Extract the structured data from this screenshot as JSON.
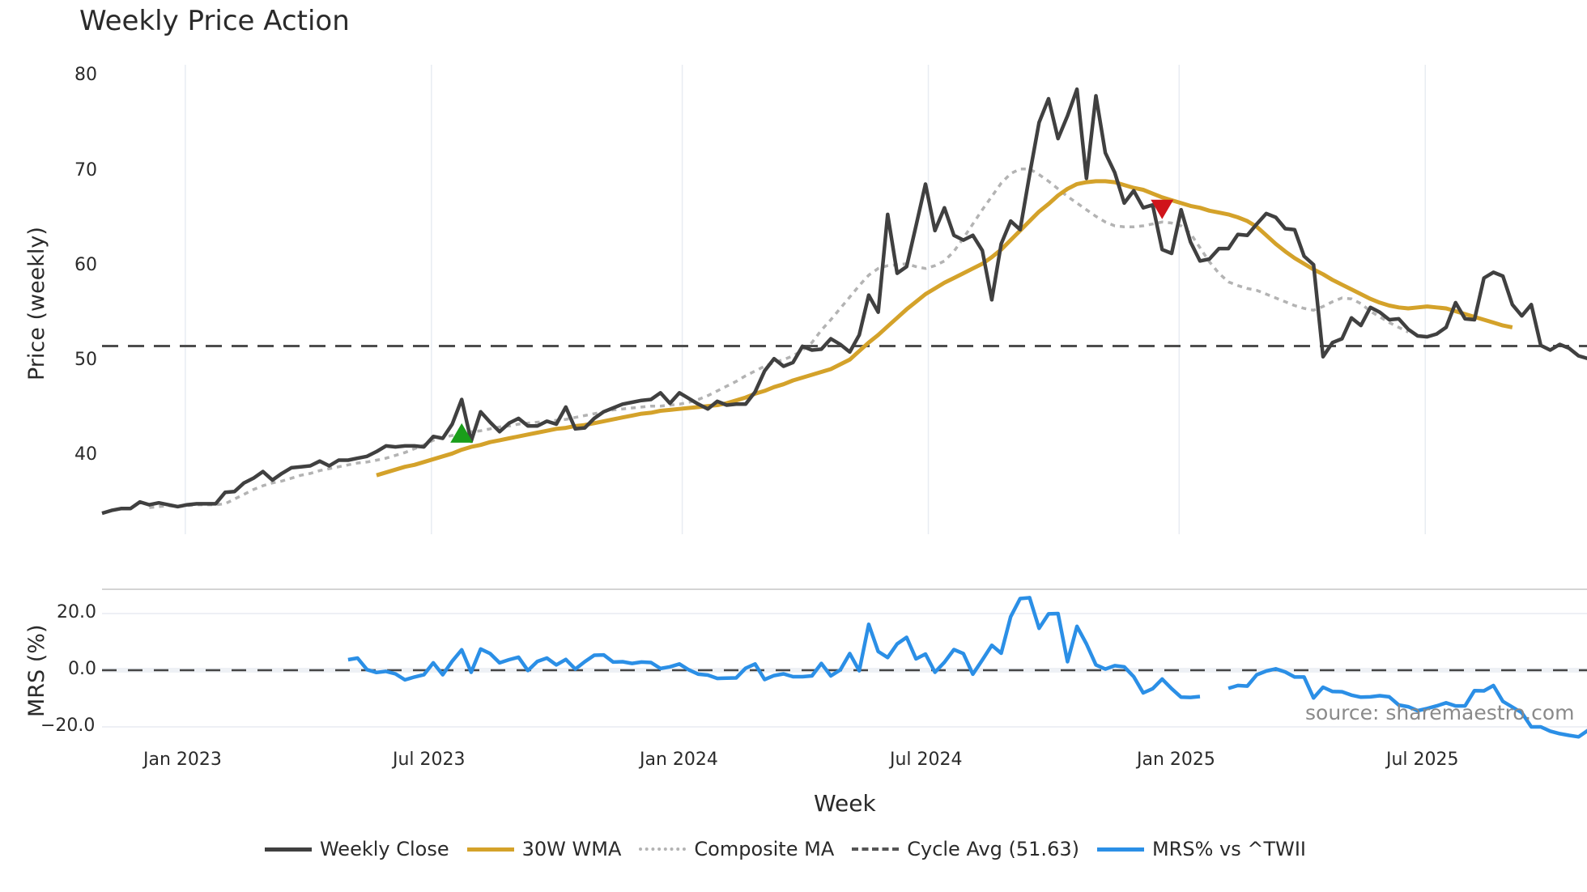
{
  "title": "Weekly Price Action",
  "watermark": "source: sharemaestro.com",
  "axes": {
    "price_ylabel": "Price (weekly)",
    "mrs_ylabel": "MRS (%)",
    "xlabel": "Week",
    "price_ticks": [
      "80",
      "70",
      "60",
      "50",
      "40"
    ],
    "mrs_ticks": [
      "20.0",
      "0.0",
      "−20.0"
    ],
    "x_ticks": [
      "Jan 2023",
      "Jul 2023",
      "Jan 2024",
      "Jul 2024",
      "Jan 2025",
      "Jul 2025"
    ]
  },
  "legend": [
    {
      "label": "Weekly Close",
      "color": "#404040",
      "style": "solid"
    },
    {
      "label": "30W WMA",
      "color": "#d4a22a",
      "style": "solid"
    },
    {
      "label": "Composite MA",
      "color": "#b3b3b3",
      "style": "dotted"
    },
    {
      "label": "Cycle Avg (51.63)",
      "color": "#555555",
      "style": "dashed"
    },
    {
      "label": "MRS% vs ^TWII",
      "color": "#2b8fe6",
      "style": "solid"
    }
  ],
  "colors": {
    "close": "#404040",
    "wma": "#d4a22a",
    "composite": "#b3b3b3",
    "cycle": "#4d4d4d",
    "mrs": "#2b8fe6",
    "buy_marker": "#1a9e1a",
    "sell_marker": "#d0141b",
    "grid": "#e8ecf2"
  },
  "chart_data": [
    {
      "type": "line",
      "title": "Weekly Price Action",
      "xlabel": "Week",
      "ylabel": "Price (weekly)",
      "ylim": [
        31.5,
        81.5
      ],
      "x_tick_labels": [
        "Jan 2023",
        "Jul 2023",
        "Jan 2024",
        "Jul 2024",
        "Jan 2025",
        "Jul 2025"
      ],
      "x_tick_index": [
        8.8,
        34.8,
        61.3,
        87.3,
        113.8,
        139.8
      ],
      "cycle_avg": 51.63,
      "series": [
        {
          "name": "Weekly Close",
          "start": 0,
          "values": [
            34.0,
            34.3,
            34.5,
            34.5,
            35.2,
            34.9,
            35.1,
            34.9,
            34.7,
            34.9,
            35.0,
            35.0,
            35.0,
            36.2,
            36.3,
            37.2,
            37.7,
            38.4,
            37.5,
            38.2,
            38.8,
            38.9,
            39.0,
            39.5,
            39.0,
            39.6,
            39.6,
            39.8,
            40.0,
            40.5,
            41.1,
            41.0,
            41.1,
            41.1,
            41.0,
            42.1,
            41.9,
            43.4,
            46.0,
            41.6,
            44.7,
            43.6,
            42.6,
            43.5,
            44.0,
            43.2,
            43.2,
            43.7,
            43.4,
            45.2,
            42.9,
            43.0,
            44.0,
            44.7,
            45.1,
            45.5,
            45.7,
            45.9,
            46.0,
            46.7,
            45.6,
            46.7,
            46.1,
            45.5,
            45.0,
            45.8,
            45.4,
            45.5,
            45.5,
            46.8,
            49.0,
            50.3,
            49.5,
            49.9,
            51.6,
            51.2,
            51.3,
            52.4,
            51.8,
            51.0,
            52.8,
            57.0,
            55.2,
            65.5,
            59.3,
            60.0,
            64.3,
            68.7,
            63.8,
            66.2,
            63.3,
            62.8,
            63.3,
            61.7,
            56.5,
            62.4,
            64.8,
            63.9,
            69.7,
            75.2,
            77.7,
            73.5,
            75.9,
            78.7,
            69.3,
            78.0,
            72.0,
            69.9,
            66.7,
            68.0,
            66.2,
            66.5,
            61.8,
            61.4,
            66.0,
            62.6,
            60.6,
            60.8,
            61.9,
            61.9,
            63.4,
            63.3,
            64.5,
            65.6,
            65.2,
            64.0,
            63.9,
            61.1,
            60.2,
            50.5,
            52.0,
            52.4,
            54.6,
            53.8,
            55.7,
            55.2,
            54.4,
            54.5,
            53.4,
            52.7,
            52.6,
            52.9,
            53.6,
            56.2,
            54.5,
            54.4,
            58.8,
            59.4,
            59.0,
            56.0,
            54.8,
            56.0,
            51.7,
            51.2,
            51.8,
            51.4,
            50.6,
            50.3,
            51.5
          ]
        },
        {
          "name": "30W WMA",
          "start": 29,
          "values": [
            38.0,
            38.3,
            38.6,
            38.9,
            39.1,
            39.4,
            39.7,
            40.0,
            40.3,
            40.7,
            41.0,
            41.2,
            41.5,
            41.7,
            41.9,
            42.1,
            42.3,
            42.5,
            42.7,
            42.9,
            43.0,
            43.2,
            43.3,
            43.5,
            43.7,
            43.9,
            44.1,
            44.3,
            44.5,
            44.6,
            44.8,
            44.9,
            45.0,
            45.1,
            45.2,
            45.3,
            45.4,
            45.6,
            45.9,
            46.2,
            46.6,
            46.9,
            47.3,
            47.6,
            48.0,
            48.3,
            48.6,
            48.9,
            49.2,
            49.7,
            50.2,
            51.1,
            52.0,
            52.8,
            53.7,
            54.6,
            55.5,
            56.3,
            57.1,
            57.7,
            58.3,
            58.8,
            59.3,
            59.8,
            60.3,
            61.0,
            61.8,
            62.8,
            63.8,
            64.8,
            65.8,
            66.6,
            67.5,
            68.2,
            68.7,
            68.9,
            69.0,
            69.0,
            68.9,
            68.6,
            68.3,
            68.1,
            67.7,
            67.3,
            67.0,
            66.7,
            66.4,
            66.2,
            65.9,
            65.7,
            65.5,
            65.2,
            64.8,
            64.2,
            63.3,
            62.4,
            61.6,
            60.9,
            60.3,
            59.7,
            59.2,
            58.6,
            58.1,
            57.6,
            57.1,
            56.6,
            56.2,
            55.9,
            55.7,
            55.6,
            55.7,
            55.8,
            55.7,
            55.6,
            55.3,
            55.0,
            54.7,
            54.4,
            54.1,
            53.8,
            53.6
          ]
        },
        {
          "name": "Composite MA",
          "start": 5,
          "values": [
            34.6,
            34.7,
            34.8,
            34.7,
            34.8,
            34.9,
            34.9,
            34.9,
            35.0,
            35.5,
            36.0,
            36.5,
            36.9,
            37.2,
            37.4,
            37.7,
            38.0,
            38.2,
            38.5,
            38.7,
            38.9,
            39.1,
            39.3,
            39.4,
            39.6,
            39.8,
            40.1,
            40.4,
            40.8,
            41.2,
            41.7,
            42.0,
            42.2,
            42.4,
            42.6,
            42.7,
            42.9,
            43.1,
            43.2,
            43.4,
            43.5,
            43.6,
            43.7,
            43.8,
            43.9,
            44.1,
            44.3,
            44.5,
            44.7,
            44.9,
            45.0,
            45.1,
            45.2,
            45.3,
            45.3,
            45.4,
            45.5,
            45.7,
            46.0,
            46.4,
            46.9,
            47.4,
            47.9,
            48.5,
            49.0,
            49.5,
            49.9,
            50.2,
            50.6,
            51.2,
            52.0,
            53.3,
            54.4,
            55.6,
            56.8,
            58.0,
            59.1,
            59.8,
            60.1,
            60.2,
            60.3,
            60.0,
            59.8,
            60.1,
            60.6,
            61.6,
            63.0,
            64.5,
            66.0,
            67.4,
            68.8,
            69.8,
            70.3,
            70.3,
            69.7,
            69.0,
            68.2,
            67.4,
            66.7,
            66.0,
            65.3,
            64.7,
            64.3,
            64.2,
            64.2,
            64.3,
            64.5,
            64.7,
            64.6,
            64.3,
            63.5,
            62.0,
            60.5,
            59.3,
            58.4,
            58.0,
            57.7,
            57.5,
            57.1,
            56.7,
            56.3,
            55.9,
            55.6,
            55.4,
            55.8,
            56.3,
            56.7,
            56.6,
            56.1,
            55.3,
            54.7,
            54.1,
            53.6,
            53.1
          ]
        }
      ],
      "markers": [
        {
          "type": "buy",
          "shape": "triangle-up",
          "index": 38,
          "value": 42.3,
          "color": "#1a9e1a"
        },
        {
          "type": "sell",
          "shape": "triangle-down",
          "index": 112,
          "value": 66.2,
          "color": "#d0141b"
        }
      ]
    },
    {
      "type": "line",
      "title": "",
      "ylabel": "MRS (%)",
      "ylim": [
        -25,
        28
      ],
      "y_ticks": [
        20.0,
        0.0,
        -20.0
      ],
      "zero_line": 0.0,
      "series": [
        {
          "name": "MRS% vs ^TWII",
          "start": 26,
          "values": [
            3.7,
            4.3,
            0.2,
            -0.8,
            -0.4,
            -1.3,
            -3.4,
            -2.4,
            -1.6,
            2.6,
            -1.6,
            3.2,
            7.2,
            -0.7,
            7.5,
            5.9,
            2.6,
            3.7,
            4.6,
            -0.1,
            3.1,
            4.3,
            1.9,
            3.8,
            0.4,
            3.0,
            5.3,
            5.4,
            2.9,
            3.0,
            2.4,
            2.9,
            2.7,
            0.6,
            1.2,
            2.2,
            0.1,
            -1.4,
            -1.7,
            -2.9,
            -2.8,
            -2.7,
            0.7,
            2.2,
            -3.3,
            -1.9,
            -1.3,
            -2.3,
            -2.3,
            -2.0,
            2.4,
            -2.0,
            0.1,
            5.9,
            -0.2,
            16.2,
            6.6,
            4.5,
            9.3,
            11.6,
            4.0,
            5.7,
            -0.7,
            2.8,
            7.3,
            5.9,
            -1.4,
            3.6,
            8.8,
            6.0,
            18.9,
            25.3,
            25.6,
            14.8,
            19.9,
            20.0,
            3.0,
            15.5,
            9.3,
            1.9,
            0.4,
            1.6,
            1.2,
            -2.3,
            -8.0,
            -6.5,
            -3.1,
            -6.5,
            -9.5,
            -9.6,
            -9.3,
            null,
            null,
            -6.4,
            -5.4,
            -5.6,
            -1.6,
            -0.3,
            0.5,
            -0.6,
            -2.4,
            -2.4,
            -9.8,
            -6.0,
            -7.5,
            -7.6,
            -8.8,
            -9.5,
            -9.4,
            -9.0,
            -9.4,
            -12.3,
            -12.9,
            -14.3,
            -13.5,
            -12.6,
            -11.5,
            -12.6,
            -12.6,
            -7.2,
            -7.3,
            -5.4,
            -11.0,
            -13.0,
            -15.0,
            -20.0,
            -20.0,
            -21.5,
            -22.4,
            -23.0,
            -23.5,
            -21.2
          ]
        }
      ]
    }
  ]
}
